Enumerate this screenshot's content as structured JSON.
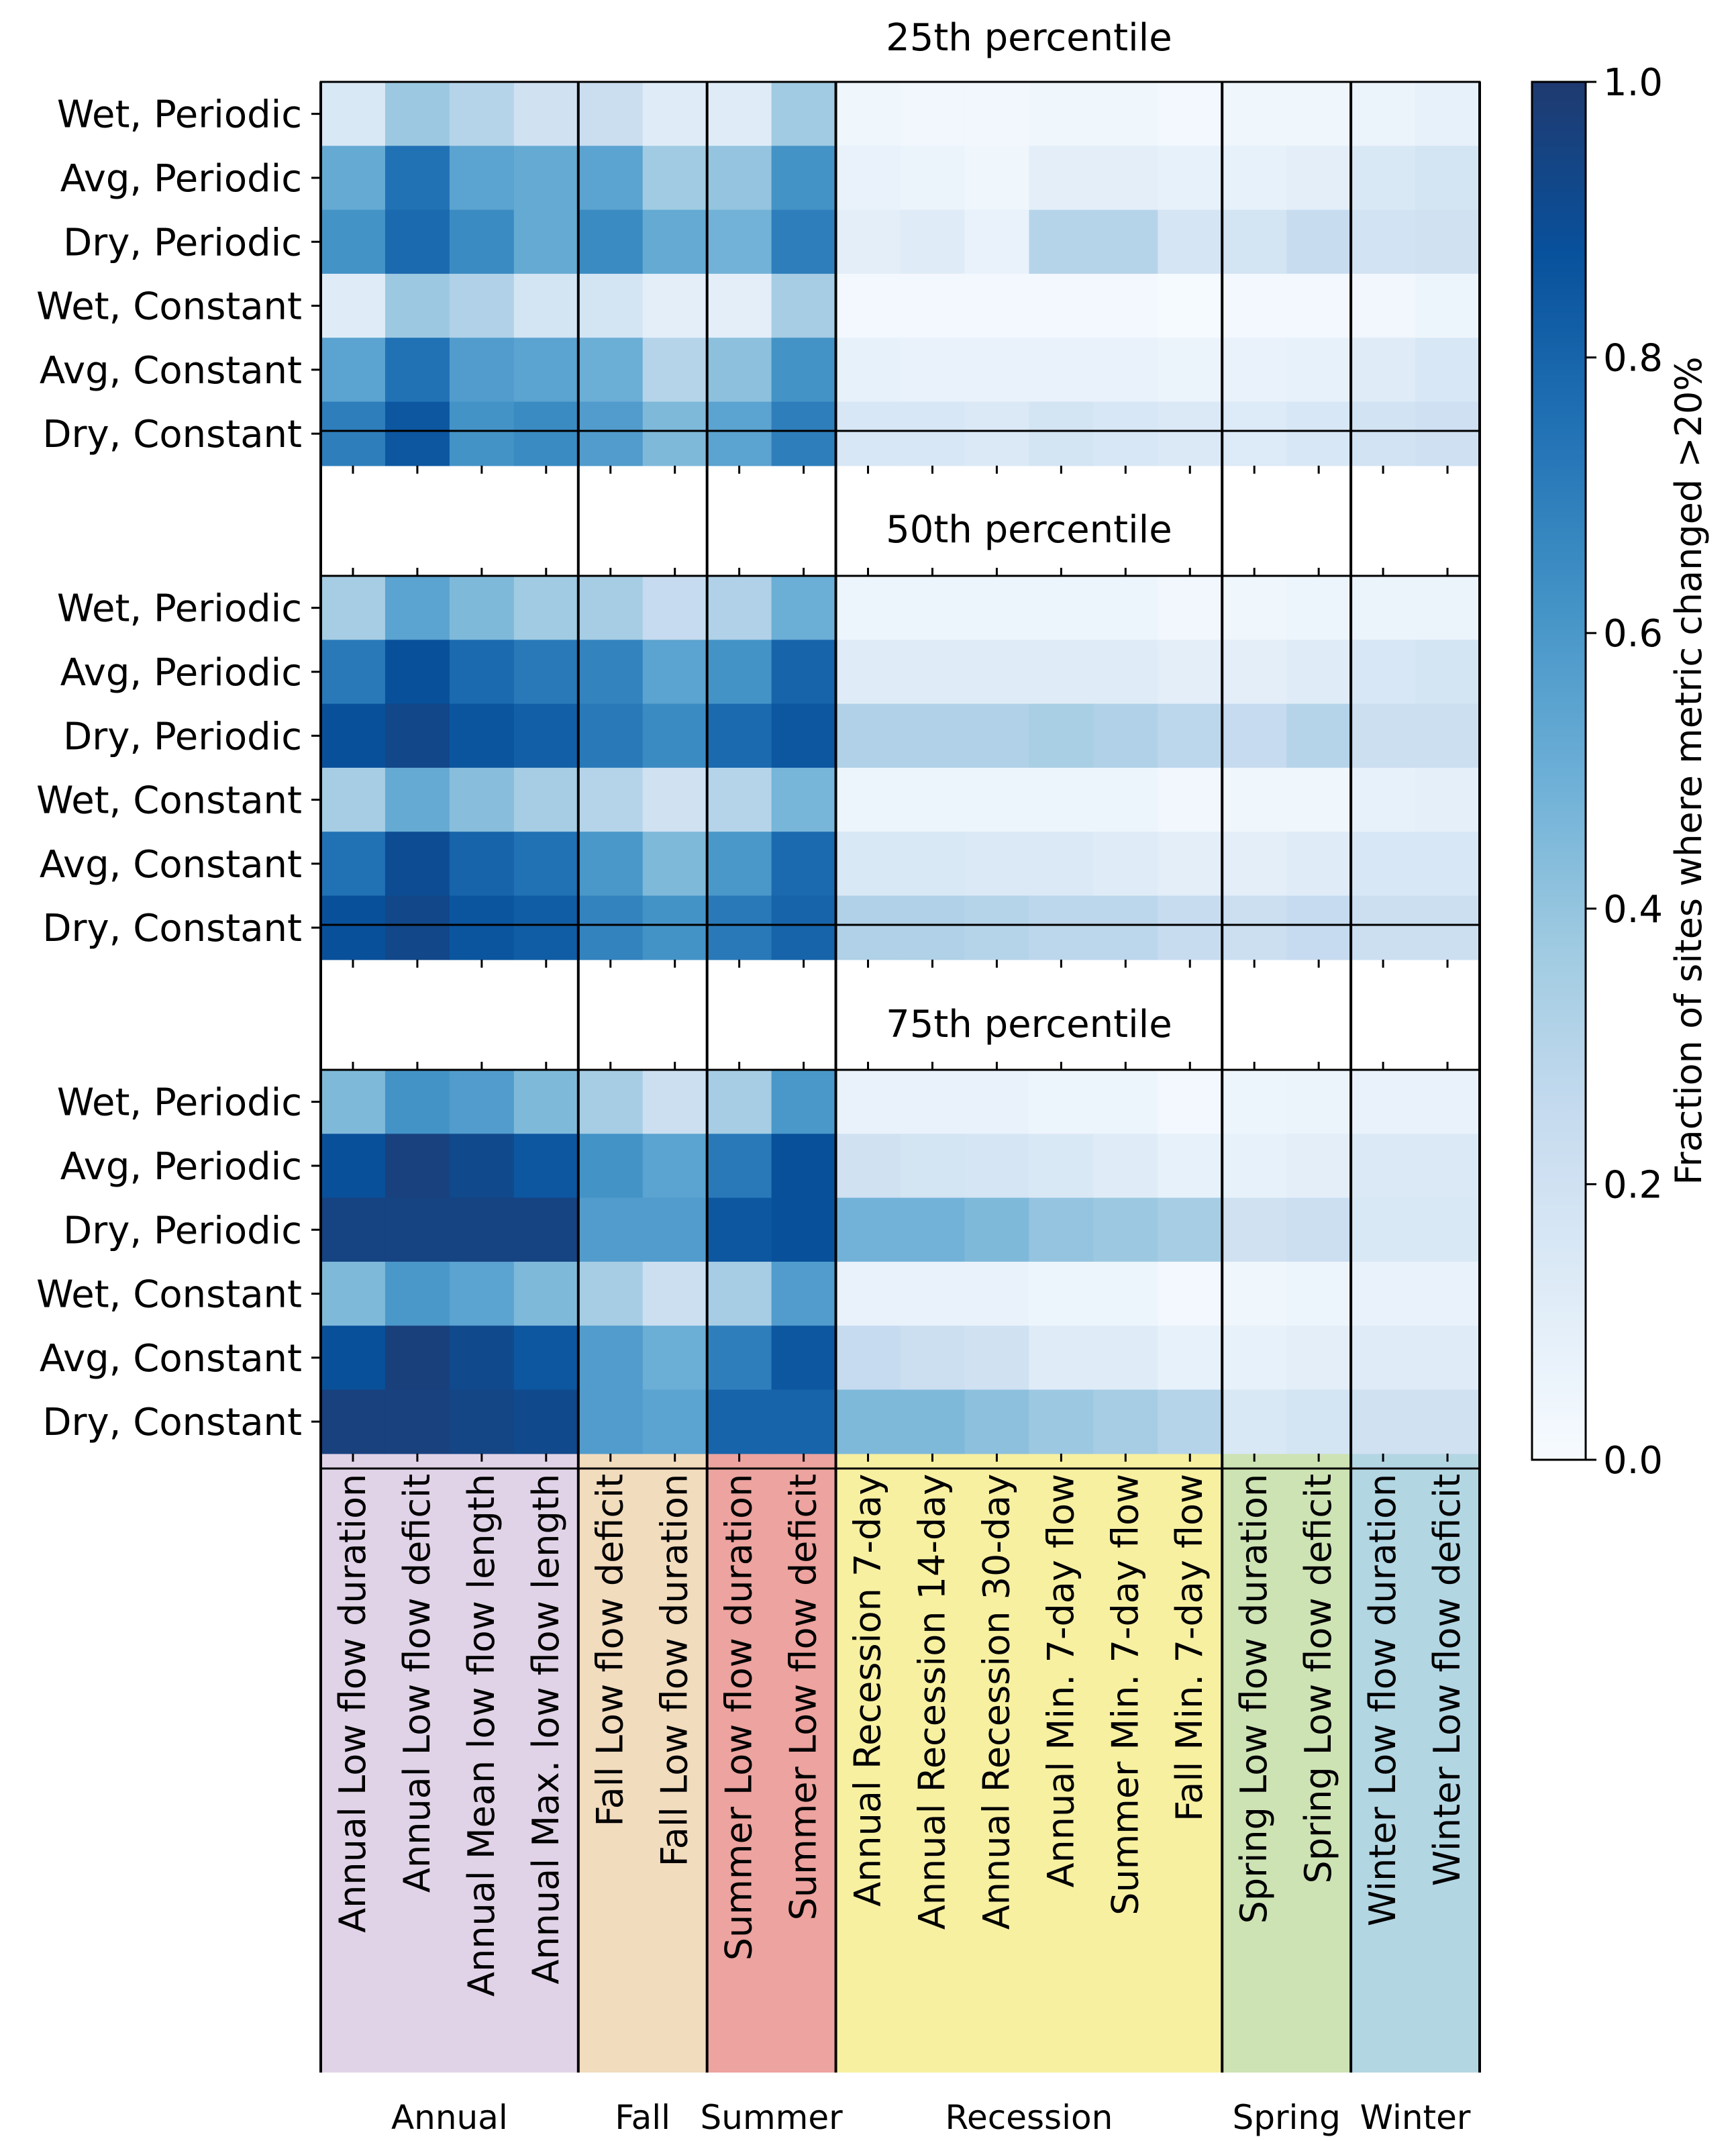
{
  "chart_data": {
    "type": "heatmap",
    "colormap": "Blues",
    "value_range": [
      0,
      1
    ],
    "colorbar": {
      "label": "Fraction of sites where metric changed >20%",
      "ticks": [
        "0.0",
        "0.2",
        "0.4",
        "0.6",
        "0.8",
        "1.0"
      ],
      "tick_values": [
        0.0,
        0.2,
        0.4,
        0.6,
        0.8,
        1.0
      ],
      "placement": "right"
    },
    "rows": [
      "Wet, Periodic",
      "Avg, Periodic",
      "Dry, Periodic",
      "Wet, Constant",
      "Avg, Constant",
      "Dry, Constant"
    ],
    "columns": [
      "Annual Low flow duration",
      "Annual Low flow deficit",
      "Annual Mean low flow length",
      "Annual Max. low flow length",
      "Fall Low flow deficit",
      "Fall Low flow duration",
      "Summer Low flow duration",
      "Summer Low flow deficit",
      "Annual Recession 7-day",
      "Annual Recession 14-day",
      "Annual Recession 30-day",
      "Annual Min. 7-day flow",
      "Summer Min. 7-day flow",
      "Fall Min. 7-day flow",
      "Spring Low flow duration",
      "Spring Low flow deficit",
      "Winter Low flow duration",
      "Winter Low flow deficit"
    ],
    "groups": [
      {
        "label": "Annual",
        "start": 0,
        "end": 4,
        "color": "#e1d3e7"
      },
      {
        "label": "Fall",
        "start": 4,
        "end": 6,
        "color": "#f2dcbe"
      },
      {
        "label": "Summer",
        "start": 6,
        "end": 8,
        "color": "#eda39f"
      },
      {
        "label": "Recession",
        "start": 8,
        "end": 14,
        "color": "#f7f0a1"
      },
      {
        "label": "Spring",
        "start": 14,
        "end": 16,
        "color": "#cde3b4"
      },
      {
        "label": "Winter",
        "start": 16,
        "end": 18,
        "color": "#b3d6e3"
      }
    ],
    "panels": [
      {
        "title": "25th percentile",
        "values": [
          [
            0.15,
            0.38,
            0.3,
            0.2,
            0.23,
            0.12,
            0.12,
            0.37,
            0.04,
            0.03,
            0.03,
            0.04,
            0.04,
            0.02,
            0.04,
            0.04,
            0.06,
            0.08
          ],
          [
            0.52,
            0.75,
            0.55,
            0.52,
            0.55,
            0.37,
            0.4,
            0.62,
            0.07,
            0.06,
            0.04,
            0.1,
            0.1,
            0.08,
            0.08,
            0.1,
            0.15,
            0.18
          ],
          [
            0.62,
            0.78,
            0.65,
            0.52,
            0.65,
            0.52,
            0.48,
            0.7,
            0.1,
            0.12,
            0.07,
            0.3,
            0.3,
            0.17,
            0.18,
            0.24,
            0.19,
            0.2
          ],
          [
            0.12,
            0.38,
            0.32,
            0.18,
            0.18,
            0.1,
            0.1,
            0.35,
            0.02,
            0.02,
            0.02,
            0.02,
            0.02,
            0.01,
            0.02,
            0.02,
            0.03,
            0.05
          ],
          [
            0.55,
            0.75,
            0.58,
            0.55,
            0.5,
            0.3,
            0.42,
            0.62,
            0.08,
            0.07,
            0.07,
            0.07,
            0.07,
            0.06,
            0.07,
            0.08,
            0.12,
            0.16
          ],
          [
            0.7,
            0.85,
            0.62,
            0.65,
            0.58,
            0.45,
            0.55,
            0.7,
            0.16,
            0.16,
            0.14,
            0.18,
            0.16,
            0.14,
            0.13,
            0.16,
            0.19,
            0.21
          ]
        ]
      },
      {
        "title": "50th percentile",
        "values": [
          [
            0.35,
            0.55,
            0.45,
            0.37,
            0.35,
            0.25,
            0.32,
            0.5,
            0.05,
            0.05,
            0.05,
            0.05,
            0.05,
            0.03,
            0.04,
            0.05,
            0.06,
            0.06
          ],
          [
            0.72,
            0.88,
            0.78,
            0.72,
            0.68,
            0.55,
            0.62,
            0.8,
            0.12,
            0.12,
            0.12,
            0.12,
            0.12,
            0.1,
            0.1,
            0.12,
            0.16,
            0.18
          ],
          [
            0.88,
            0.93,
            0.86,
            0.82,
            0.72,
            0.65,
            0.78,
            0.85,
            0.32,
            0.32,
            0.32,
            0.34,
            0.32,
            0.28,
            0.25,
            0.3,
            0.22,
            0.22
          ],
          [
            0.35,
            0.52,
            0.43,
            0.35,
            0.3,
            0.2,
            0.3,
            0.47,
            0.05,
            0.05,
            0.05,
            0.05,
            0.05,
            0.03,
            0.04,
            0.04,
            0.08,
            0.09
          ],
          [
            0.75,
            0.9,
            0.8,
            0.75,
            0.6,
            0.45,
            0.6,
            0.78,
            0.15,
            0.15,
            0.14,
            0.14,
            0.12,
            0.1,
            0.1,
            0.12,
            0.16,
            0.16
          ],
          [
            0.88,
            0.93,
            0.86,
            0.83,
            0.68,
            0.62,
            0.72,
            0.8,
            0.32,
            0.32,
            0.3,
            0.28,
            0.28,
            0.24,
            0.22,
            0.25,
            0.22,
            0.22
          ]
        ]
      },
      {
        "title": "75th percentile",
        "values": [
          [
            0.45,
            0.62,
            0.58,
            0.45,
            0.35,
            0.22,
            0.35,
            0.6,
            0.07,
            0.07,
            0.07,
            0.05,
            0.05,
            0.02,
            0.05,
            0.06,
            0.07,
            0.07
          ],
          [
            0.88,
            0.96,
            0.92,
            0.85,
            0.62,
            0.55,
            0.72,
            0.88,
            0.2,
            0.18,
            0.17,
            0.15,
            0.12,
            0.08,
            0.08,
            0.1,
            0.14,
            0.14
          ],
          [
            0.95,
            0.95,
            0.95,
            0.95,
            0.58,
            0.58,
            0.85,
            0.88,
            0.48,
            0.48,
            0.45,
            0.4,
            0.38,
            0.35,
            0.2,
            0.22,
            0.15,
            0.15
          ],
          [
            0.45,
            0.6,
            0.55,
            0.45,
            0.35,
            0.22,
            0.35,
            0.58,
            0.07,
            0.07,
            0.07,
            0.05,
            0.05,
            0.02,
            0.04,
            0.05,
            0.07,
            0.07
          ],
          [
            0.88,
            0.97,
            0.92,
            0.85,
            0.58,
            0.5,
            0.7,
            0.85,
            0.25,
            0.22,
            0.2,
            0.12,
            0.12,
            0.08,
            0.08,
            0.1,
            0.12,
            0.12
          ],
          [
            0.96,
            0.96,
            0.94,
            0.92,
            0.58,
            0.55,
            0.8,
            0.8,
            0.45,
            0.45,
            0.42,
            0.38,
            0.35,
            0.3,
            0.15,
            0.18,
            0.2,
            0.2
          ]
        ]
      }
    ]
  }
}
